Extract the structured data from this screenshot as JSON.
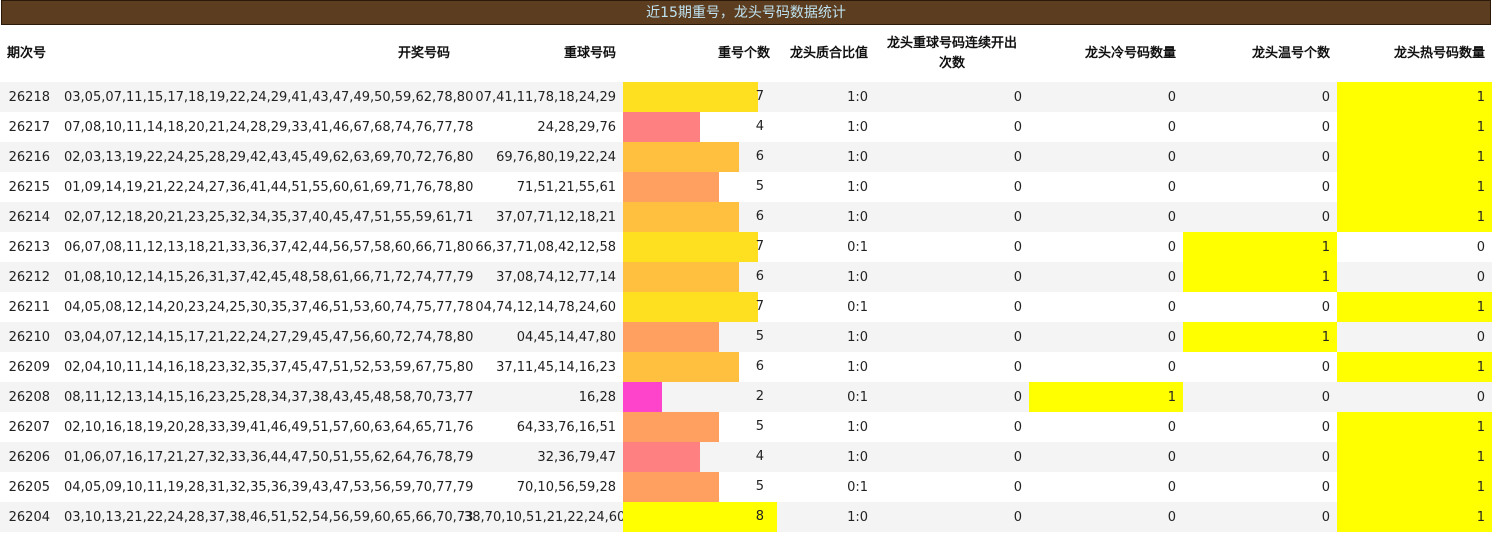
{
  "title": "近15期重号，龙头号码数据统计",
  "headers": {
    "issue": "期次号",
    "draw": "开奖号码",
    "repeat": "重球号码",
    "repeat_count": "重号个数",
    "ratio": "龙头质合比值",
    "consec": "龙头重球号码连续开出次数",
    "cold": "龙头冷号码数量",
    "warm": "龙头温号个数",
    "hot": "龙头热号码数量"
  },
  "bar_colors": {
    "2": "#ff44cc",
    "4": "#ff8080",
    "5": "#ffa060",
    "6": "#ffc040",
    "7": "#ffe020",
    "8": "#ffff00"
  },
  "highlight_color": "#ffff00",
  "rows": [
    {
      "issue": "26218",
      "draw": "03,05,07,11,15,17,18,19,22,24,29,41,43,47,49,50,59,62,78,80",
      "repeat": "07,41,11,78,18,24,29",
      "repeat_count": "7",
      "ratio": "1:0",
      "consec": "0",
      "cold": "0",
      "warm": "0",
      "hot": "1"
    },
    {
      "issue": "26217",
      "draw": "07,08,10,11,14,18,20,21,24,28,29,33,41,46,67,68,74,76,77,78",
      "repeat": "24,28,29,76",
      "repeat_count": "4",
      "ratio": "1:0",
      "consec": "0",
      "cold": "0",
      "warm": "0",
      "hot": "1"
    },
    {
      "issue": "26216",
      "draw": "02,03,13,19,22,24,25,28,29,42,43,45,49,62,63,69,70,72,76,80",
      "repeat": "69,76,80,19,22,24",
      "repeat_count": "6",
      "ratio": "1:0",
      "consec": "0",
      "cold": "0",
      "warm": "0",
      "hot": "1"
    },
    {
      "issue": "26215",
      "draw": "01,09,14,19,21,22,24,27,36,41,44,51,55,60,61,69,71,76,78,80",
      "repeat": "71,51,21,55,61",
      "repeat_count": "5",
      "ratio": "1:0",
      "consec": "0",
      "cold": "0",
      "warm": "0",
      "hot": "1"
    },
    {
      "issue": "26214",
      "draw": "02,07,12,18,20,21,23,25,32,34,35,37,40,45,47,51,55,59,61,71",
      "repeat": "37,07,71,12,18,21",
      "repeat_count": "6",
      "ratio": "1:0",
      "consec": "0",
      "cold": "0",
      "warm": "0",
      "hot": "1"
    },
    {
      "issue": "26213",
      "draw": "06,07,08,11,12,13,18,21,33,36,37,42,44,56,57,58,60,66,71,80",
      "repeat": "66,37,71,08,42,12,58",
      "repeat_count": "7",
      "ratio": "0:1",
      "consec": "0",
      "cold": "0",
      "warm": "1",
      "hot": "0"
    },
    {
      "issue": "26212",
      "draw": "01,08,10,12,14,15,26,31,37,42,45,48,58,61,66,71,72,74,77,79",
      "repeat": "37,08,74,12,77,14",
      "repeat_count": "6",
      "ratio": "1:0",
      "consec": "0",
      "cold": "0",
      "warm": "1",
      "hot": "0"
    },
    {
      "issue": "26211",
      "draw": "04,05,08,12,14,20,23,24,25,30,35,37,46,51,53,60,74,75,77,78",
      "repeat": "04,74,12,14,78,24,60",
      "repeat_count": "7",
      "ratio": "0:1",
      "consec": "0",
      "cold": "0",
      "warm": "0",
      "hot": "1"
    },
    {
      "issue": "26210",
      "draw": "03,04,07,12,14,15,17,21,22,24,27,29,45,47,56,60,72,74,78,80",
      "repeat": "04,45,14,47,80",
      "repeat_count": "5",
      "ratio": "1:0",
      "consec": "0",
      "cold": "0",
      "warm": "1",
      "hot": "0"
    },
    {
      "issue": "26209",
      "draw": "02,04,10,11,14,16,18,23,32,35,37,45,47,51,52,53,59,67,75,80",
      "repeat": "37,11,45,14,16,23",
      "repeat_count": "6",
      "ratio": "1:0",
      "consec": "0",
      "cold": "0",
      "warm": "0",
      "hot": "1"
    },
    {
      "issue": "26208",
      "draw": "08,11,12,13,14,15,16,23,25,28,34,37,38,43,45,48,58,70,73,77",
      "repeat": "16,28",
      "repeat_count": "2",
      "ratio": "0:1",
      "consec": "0",
      "cold": "1",
      "warm": "0",
      "hot": "0"
    },
    {
      "issue": "26207",
      "draw": "02,10,16,18,19,20,28,33,39,41,46,49,51,57,60,63,64,65,71,76",
      "repeat": "64,33,76,16,51",
      "repeat_count": "5",
      "ratio": "1:0",
      "consec": "0",
      "cold": "0",
      "warm": "0",
      "hot": "1"
    },
    {
      "issue": "26206",
      "draw": "01,06,07,16,17,21,27,32,33,36,44,47,50,51,55,62,64,76,78,79",
      "repeat": "32,36,79,47",
      "repeat_count": "4",
      "ratio": "1:0",
      "consec": "0",
      "cold": "0",
      "warm": "0",
      "hot": "1"
    },
    {
      "issue": "26205",
      "draw": "04,05,09,10,11,19,28,31,32,35,36,39,43,47,53,56,59,70,77,79",
      "repeat": "70,10,56,59,28",
      "repeat_count": "5",
      "ratio": "0:1",
      "consec": "0",
      "cold": "0",
      "warm": "0",
      "hot": "1"
    },
    {
      "issue": "26204",
      "draw": "03,10,13,21,22,24,28,37,38,46,51,52,54,56,59,60,65,66,70,73",
      "repeat": "38,70,10,51,21,22,24,60",
      "repeat_count": "8",
      "ratio": "1:0",
      "consec": "0",
      "cold": "0",
      "warm": "0",
      "hot": "1"
    }
  ]
}
